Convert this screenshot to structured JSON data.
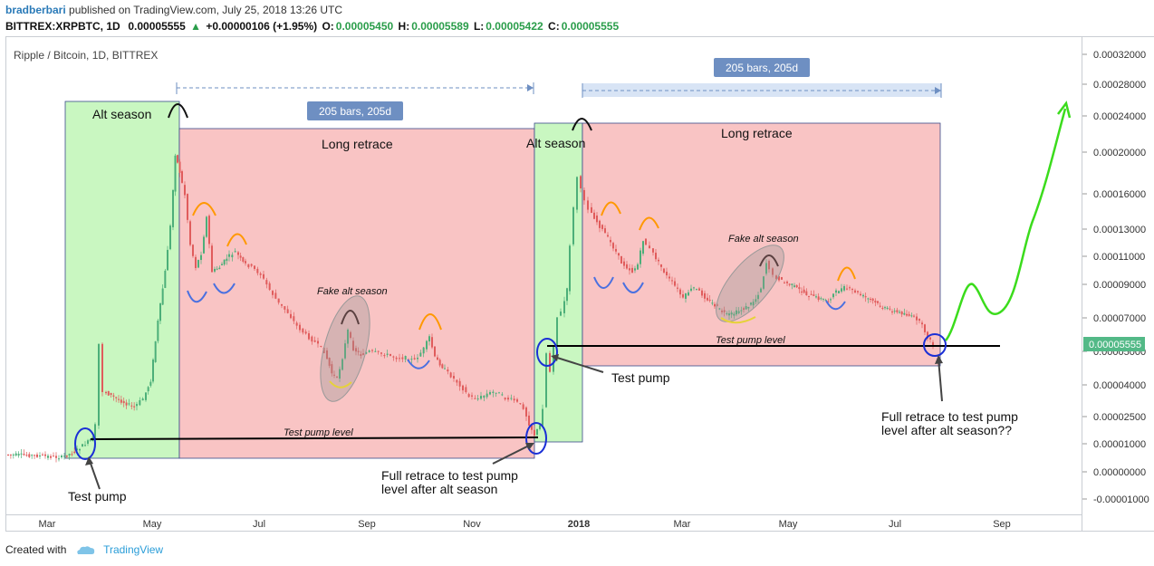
{
  "header": {
    "author": "bradberbari",
    "published_text": "published on TradingView.com, July 25, 2018 13:26 UTC",
    "symbol": "BITTREX:XRPBTC, 1D",
    "price": "0.00005555",
    "change": "+0.00000106 (+1.95%)",
    "o_label": "O:",
    "o_value": "0.00005450",
    "h_label": "H:",
    "h_value": "0.00005589",
    "l_label": "L:",
    "l_value": "0.00005422",
    "c_label": "C:",
    "c_value": "0.00005555",
    "up_arrow": "▲"
  },
  "footer": {
    "created_with": "Created with",
    "brand": "TradingView",
    "logo_icon": "tradingview-cloud-icon"
  },
  "colors": {
    "up": "#4caf79",
    "down": "#e05c5c",
    "green_zone": "#c9f7c1",
    "red_zone": "#f9c4c4",
    "price_tag": "#53b987",
    "measure_tag": "#6e8fc2",
    "projection": "#3bdc1c",
    "circle": "#1a2fd6",
    "smile": "#4a70e0",
    "arc_orange": "#ff9800"
  },
  "chart_data": {
    "type": "candlestick",
    "title": "Ripple / Bitcoin, 1D, BITTREX",
    "y_tick_labels": [
      "0.00032000",
      "0.00028000",
      "0.00024000",
      "0.00020000",
      "0.00016000",
      "0.00013000",
      "0.00011000",
      "0.00009000",
      "0.00007000",
      "0.00005000",
      "0.00004000",
      "0.00002500",
      "0.00001000",
      "0.00000000",
      "-0.00001000"
    ],
    "x_tick_labels": [
      "Mar",
      "May",
      "Jul",
      "Sep",
      "Nov",
      "2018",
      "Mar",
      "May",
      "Jul",
      "Sep"
    ],
    "last_price_label": "0.00005555",
    "annotations": {
      "alt_season_1": "Alt season",
      "alt_season_2": "Alt season",
      "long_retrace_1": "Long retrace",
      "long_retrace_2": "Long retrace",
      "measure_1": "205 bars, 205d",
      "measure_2": "205 bars, 205d",
      "fake_alt_1": "Fake alt season",
      "fake_alt_2": "Fake alt season",
      "test_pump_level_1": "Test pump level",
      "test_pump_level_2": "Test pump level",
      "test_pump_1": "Test pump",
      "test_pump_2": "Test pump",
      "full_retrace_1_line1": "Full retrace to test pump",
      "full_retrace_1_line2": "level after alt season",
      "full_retrace_2_line1": "Full retrace to test pump",
      "full_retrace_2_line2": "level after alt season??"
    },
    "price_path_approx": [
      {
        "date": "2017-02-01",
        "close": 8.5e-06
      },
      {
        "date": "2017-03-10",
        "close": 9e-06
      },
      {
        "date": "2017-03-20",
        "close": 1.2e-05
      },
      {
        "date": "2017-04-01",
        "close": 3e-05
      },
      {
        "date": "2017-04-20",
        "close": 3.3e-05
      },
      {
        "date": "2017-05-10",
        "close": 9e-05
      },
      {
        "date": "2017-05-16",
        "close": 0.0002
      },
      {
        "date": "2017-06-05",
        "close": 0.00012
      },
      {
        "date": "2017-07-01",
        "close": 0.0001
      },
      {
        "date": "2017-08-01",
        "close": 7.5e-05
      },
      {
        "date": "2017-08-20",
        "close": 5e-05
      },
      {
        "date": "2017-09-05",
        "close": 6e-05
      },
      {
        "date": "2017-10-10",
        "close": 7e-05
      },
      {
        "date": "2017-11-01",
        "close": 3.2e-05
      },
      {
        "date": "2017-12-08",
        "close": 1.5e-05
      },
      {
        "date": "2017-12-22",
        "close": 5.5e-05
      },
      {
        "date": "2018-01-04",
        "close": 0.00022
      },
      {
        "date": "2018-02-01",
        "close": 0.00013
      },
      {
        "date": "2018-03-01",
        "close": 9e-05
      },
      {
        "date": "2018-04-01",
        "close": 7e-05
      },
      {
        "date": "2018-04-28",
        "close": 0.00011
      },
      {
        "date": "2018-06-01",
        "close": 8.5e-05
      },
      {
        "date": "2018-07-01",
        "close": 7e-05
      },
      {
        "date": "2018-07-25",
        "close": 5.55e-05
      }
    ]
  }
}
